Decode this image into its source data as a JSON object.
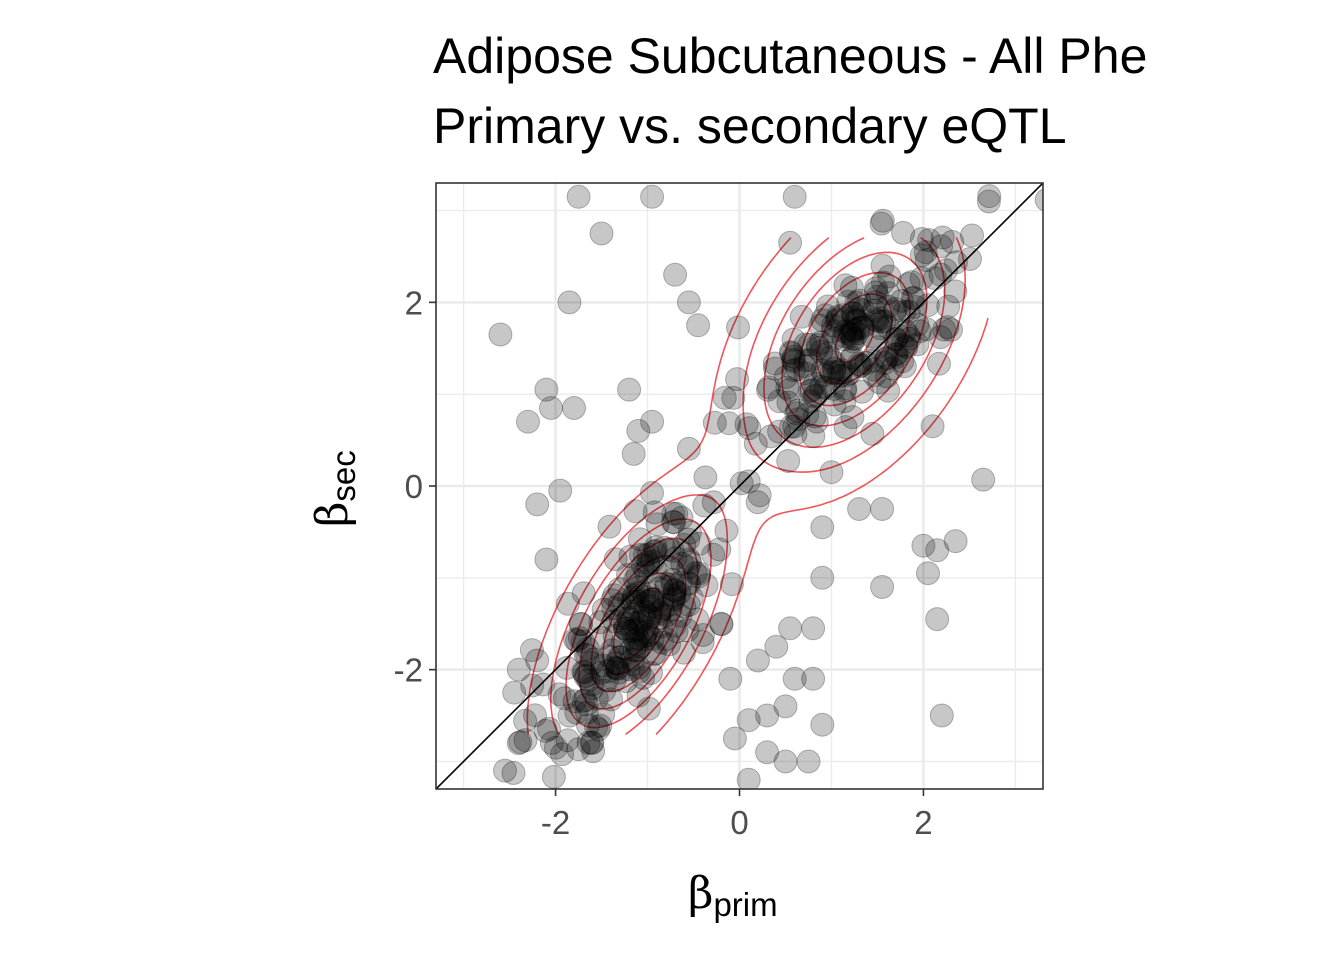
{
  "chart_data": {
    "type": "scatter",
    "title_line1": "Adipose Subcutaneous - All Phe",
    "title_line2": "Primary vs. secondary eQTL",
    "xlabel_symbol": "β",
    "xlabel_sub": "prim",
    "ylabel_symbol": "β",
    "ylabel_sub": "sec",
    "xlim": [
      -3.3,
      3.3
    ],
    "ylim": [
      -3.3,
      3.3
    ],
    "x_ticks": [
      -2,
      0,
      2
    ],
    "x_tick_labels": [
      "-2",
      "0",
      "2"
    ],
    "y_ticks": [
      -2,
      0,
      2
    ],
    "y_tick_labels": [
      "-2",
      "0",
      "2"
    ],
    "grid": true,
    "reference_line": "y = x",
    "colors": {
      "points": "#000000",
      "point_opacity": 0.22,
      "contours": "#f0555a",
      "reference_line": "#000000",
      "panel_border": "#333333",
      "grid": "#ebebeb"
    },
    "point_clusters": [
      {
        "name": "upper-right",
        "center": [
          1.3,
          1.6
        ],
        "count": 210
      },
      {
        "name": "lower-left",
        "center": [
          -1.1,
          -1.5
        ],
        "count": 230
      },
      {
        "name": "scattered",
        "count": 60
      }
    ],
    "series": [
      {
        "type": "scatter",
        "points": [
          [
            -2.6,
            1.65
          ],
          [
            -2.3,
            0.7
          ],
          [
            -2.1,
            1.05
          ],
          [
            -2.05,
            0.85
          ],
          [
            -1.8,
            0.85
          ],
          [
            -1.85,
            2.0
          ],
          [
            -1.75,
            3.15
          ],
          [
            -1.5,
            2.75
          ],
          [
            -0.95,
            3.15
          ],
          [
            -1.2,
            1.05
          ],
          [
            -0.95,
            0.7
          ],
          [
            -1.15,
            0.35
          ],
          [
            -1.1,
            0.6
          ],
          [
            -2.4,
            -2.0
          ],
          [
            -2.2,
            -1.9
          ],
          [
            -2.45,
            -2.25
          ],
          [
            -2.4,
            -2.8
          ],
          [
            -2.55,
            -3.1
          ],
          [
            -2.1,
            -0.8
          ],
          [
            -2.2,
            -0.2
          ],
          [
            -1.95,
            -0.05
          ],
          [
            -0.4,
            -1.7
          ],
          [
            -0.2,
            -1.5
          ],
          [
            -0.1,
            -2.1
          ],
          [
            0.2,
            -1.9
          ],
          [
            0.4,
            -1.75
          ],
          [
            0.55,
            -1.55
          ],
          [
            0.6,
            -2.1
          ],
          [
            0.8,
            -2.1
          ],
          [
            0.5,
            -2.4
          ],
          [
            0.3,
            -2.5
          ],
          [
            0.1,
            -2.55
          ],
          [
            -0.05,
            -2.75
          ],
          [
            0.3,
            -2.9
          ],
          [
            0.1,
            -3.2
          ],
          [
            0.5,
            -3.0
          ],
          [
            0.75,
            -3.0
          ],
          [
            0.9,
            -2.6
          ],
          [
            0.9,
            -1.0
          ],
          [
            0.8,
            -1.55
          ],
          [
            1.55,
            -1.1
          ],
          [
            2.15,
            -1.45
          ],
          [
            2.2,
            -2.5
          ],
          [
            2.0,
            -0.65
          ],
          [
            2.05,
            -0.95
          ],
          [
            2.15,
            -0.7
          ],
          [
            2.35,
            -0.6
          ],
          [
            2.65,
            0.07
          ],
          [
            0.9,
            -0.45
          ],
          [
            1.3,
            -0.25
          ],
          [
            1.55,
            -0.25
          ],
          [
            2.1,
            0.65
          ],
          [
            2.3,
            1.7
          ],
          [
            0.6,
            3.15
          ],
          [
            0.55,
            2.65
          ],
          [
            -0.7,
            2.3
          ],
          [
            -0.55,
            2.0
          ],
          [
            -0.45,
            1.75
          ],
          [
            0.1,
            0.05
          ],
          [
            1.0,
            0.15
          ]
        ]
      }
    ]
  }
}
